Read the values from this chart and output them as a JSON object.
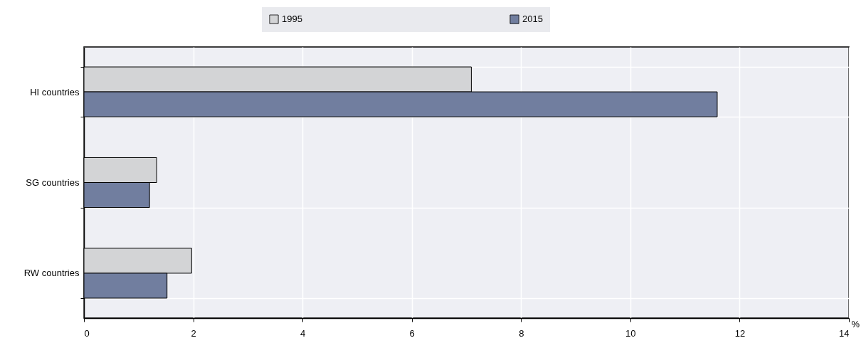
{
  "chart_data": {
    "type": "bar",
    "orientation": "horizontal",
    "categories": [
      "HI countries",
      "SG countries",
      "RW countries"
    ],
    "series": [
      {
        "name": "1995",
        "color": "#d3d4d6",
        "values": [
          7.09,
          1.33,
          1.97
        ]
      },
      {
        "name": "2015",
        "color": "#717e9f",
        "values": [
          11.59,
          1.2,
          1.52
        ]
      }
    ],
    "xlabel": "%",
    "xlim": [
      0,
      14
    ],
    "xticks": [
      0,
      2,
      4,
      6,
      8,
      10,
      12,
      14
    ],
    "grid": true,
    "legend": "top"
  }
}
